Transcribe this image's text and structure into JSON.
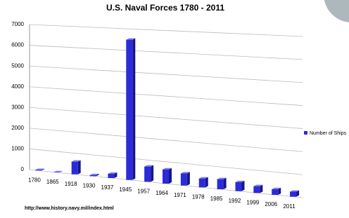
{
  "chart_data": {
    "type": "bar",
    "title": "U.S. Naval Forces 1780 - 2011",
    "categories": [
      "1780",
      "1865",
      "1918",
      "1930",
      "1937",
      "1945",
      "1957",
      "1964",
      "1971",
      "1978",
      "1985",
      "1992",
      "1999",
      "2006",
      "2011"
    ],
    "series": [
      {
        "name": "Number of Ships",
        "color": "#2b2bd8",
        "values": [
          30,
          10,
          600,
          50,
          200,
          6500,
          700,
          650,
          550,
          400,
          450,
          400,
          300,
          250,
          220
        ]
      }
    ],
    "ylim": [
      0,
      7000
    ],
    "yticks": [
      0,
      1000,
      2000,
      3000,
      4000,
      5000,
      6000,
      7000
    ],
    "grid": true,
    "legend": "right",
    "source": "http://www.history.navy.mil/index.html"
  }
}
